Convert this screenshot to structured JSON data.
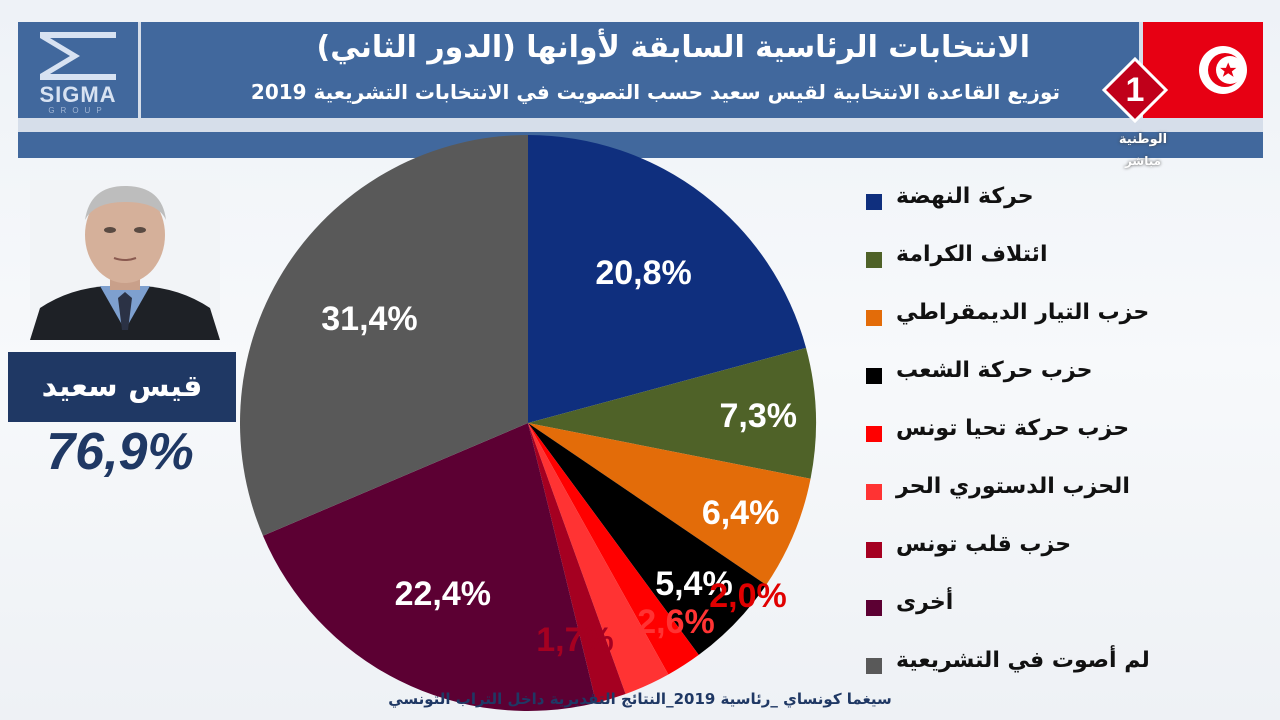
{
  "header": {
    "title": "الانتخابات الرئاسية السابقة لأوانها (الدور الثاني)",
    "subtitle": "توزيع القاعدة الانتخابية لقيس سعيد حسب التصويت في الانتخابات التشريعية 2019",
    "logo_text": "SIGMA",
    "logo_subtext": "GROUP",
    "channel_number": "1",
    "channel_name": "الوطنية",
    "channel_live": "مباشر",
    "flag_color": "#e70013",
    "title_bar_color": "#41689d"
  },
  "candidate": {
    "name": "قيس سعيد",
    "percent": "76,9%"
  },
  "footer": {
    "text": "سيغما كونساي _رئاسية 2019_النتائج التقديرية داخل التراب التونسي"
  },
  "chart_data": {
    "type": "pie",
    "title": "",
    "start_angle_deg": 0,
    "direction": "clockwise",
    "slices": [
      {
        "label": "حركة النهضة",
        "value": 20.8,
        "display": "20,8%",
        "color": "#0f2f7e",
        "label_color": "#ffffff"
      },
      {
        "label": "ائتلاف الكرامة",
        "value": 7.3,
        "display": "7,3%",
        "color": "#4f6228",
        "label_color": "#ffffff"
      },
      {
        "label": "حزب التيار الديمقراطي",
        "value": 6.4,
        "display": "6,4%",
        "color": "#e36c09",
        "label_color": "#ffffff"
      },
      {
        "label": "حزب حركة الشعب",
        "value": 5.4,
        "display": "5,4%",
        "color": "#000000",
        "label_color": "#ffffff"
      },
      {
        "label": "حزب حركة تحيا تونس",
        "value": 2.0,
        "display": "2,0%",
        "color": "#ff0000",
        "label_color": "#e00000"
      },
      {
        "label": "الحزب الدستوري الحر",
        "value": 2.6,
        "display": "2,6%",
        "color": "#ff3333",
        "label_color": "#ff3333"
      },
      {
        "label": "حزب قلب تونس",
        "value": 1.7,
        "display": "1,7%",
        "color": "#a50021",
        "label_color": "#a50021"
      },
      {
        "label": "أخرى",
        "value": 22.4,
        "display": "22,4%",
        "color": "#5c0033",
        "label_color": "#ffffff"
      },
      {
        "label": "لم أصوت في  التشريعية",
        "value": 31.4,
        "display": "31,4%",
        "color": "#595959",
        "label_color": "#ffffff"
      }
    ]
  }
}
